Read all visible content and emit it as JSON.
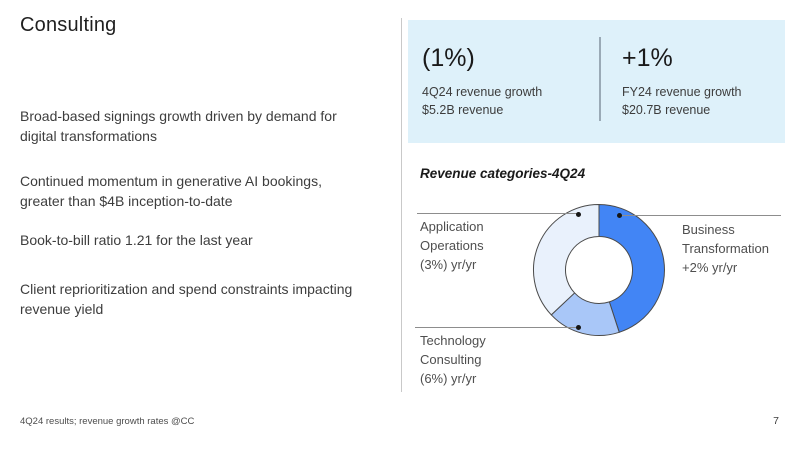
{
  "slide": {
    "title": "Consulting",
    "bullets": [
      "Broad-based signings growth driven by demand for digital transformations",
      "Continued momentum in generative AI bookings, greater than $4B inception-to-date",
      "Book-to-bill ratio 1.21 for the last year",
      "Client reprioritization and spend constraints impacting revenue yield"
    ],
    "footnote": "4Q24 results; revenue growth rates @CC",
    "page_number": "7"
  },
  "metrics_panel": {
    "background_color": "#def1fa",
    "left_metric": {
      "value": "(1%)",
      "caption_line1": "4Q24 revenue growth",
      "caption_line2": "$5.2B revenue"
    },
    "right_metric": {
      "value": "+1%",
      "caption_line1": "FY24 revenue growth",
      "caption_line2": "$20.7B revenue"
    }
  },
  "chart_data": {
    "type": "pie",
    "donut": true,
    "title": "Revenue categories-4Q24",
    "start_angle_deg": 0,
    "direction": "clockwise",
    "legend_position": "callout-labels",
    "segments": [
      {
        "name": "Business Transformation",
        "growth": "+2% yr/yr",
        "share_pct": 45,
        "color": "#4285f5"
      },
      {
        "name": "Technology Consulting",
        "growth": "(6%) yr/yr",
        "share_pct": 18,
        "color": "#a9c7f8"
      },
      {
        "name": "Application Operations",
        "growth": "(3%) yr/yr",
        "share_pct": 37,
        "color": "#e9f1fc"
      }
    ],
    "outline_color": "#4a4a4a"
  }
}
